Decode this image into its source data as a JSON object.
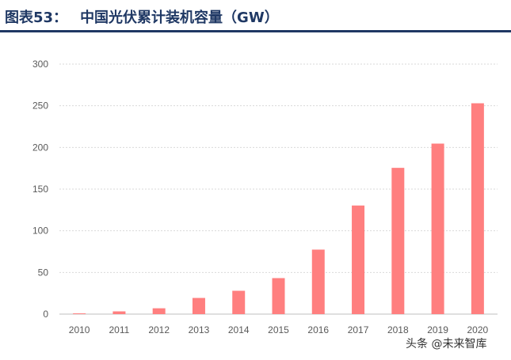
{
  "header": {
    "figure_label": "图表53：",
    "title": "中国光伏累计装机容量（GW）"
  },
  "watermark": "头条 @未来智库",
  "chart_data": {
    "type": "bar",
    "title": "中国光伏累计装机容量（GW）",
    "xlabel": "",
    "ylabel": "",
    "categories": [
      "2010",
      "2011",
      "2012",
      "2013",
      "2014",
      "2015",
      "2016",
      "2017",
      "2018",
      "2019",
      "2020"
    ],
    "values": [
      0.9,
      3.3,
      7,
      19.4,
      28,
      43.2,
      77.4,
      130.3,
      175.5,
      204.6,
      253
    ],
    "ylim": [
      0,
      300
    ],
    "yticks": [
      "0",
      "50",
      "100",
      "150",
      "200",
      "250",
      "300"
    ],
    "grid": true,
    "bar_color": "#ff7f7f",
    "grid_color": "#d9d9d9"
  }
}
